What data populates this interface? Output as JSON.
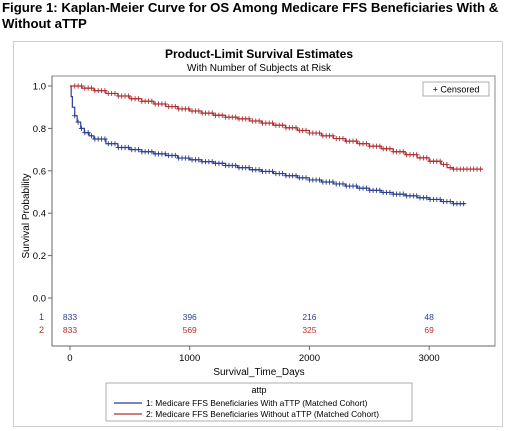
{
  "figure_caption": "Figure 1: Kaplan-Meier Curve for OS Among Medicare FFS Beneficiaries With & Without aTTP",
  "chart_data": {
    "type": "line",
    "title": "Product-Limit Survival Estimates",
    "subtitle": "With Number of Subjects at Risk",
    "xlabel": "Survival_Time_Days",
    "ylabel": "Survival Probability",
    "xlim": [
      -150,
      3550
    ],
    "ylim": [
      0,
      1.0
    ],
    "x_ticks": [
      0,
      1000,
      2000,
      3000
    ],
    "y_ticks": [
      0.0,
      0.2,
      0.4,
      0.6,
      0.8,
      1.0
    ],
    "y_tick_labels": [
      "0.0",
      "0.2",
      "0.4",
      "0.6",
      "0.8",
      "1.0"
    ],
    "censored_legend": "+ Censored",
    "legend_title": "attp",
    "series": [
      {
        "id": "1",
        "name": "1: Medicare FFS Beneficiaries With aTTP (Matched Cohort)",
        "color": "#2a3f8f",
        "points": [
          [
            0,
            1.0
          ],
          [
            10,
            0.95
          ],
          [
            20,
            0.9
          ],
          [
            40,
            0.86
          ],
          [
            60,
            0.83
          ],
          [
            90,
            0.8
          ],
          [
            120,
            0.78
          ],
          [
            160,
            0.765
          ],
          [
            200,
            0.75
          ],
          [
            300,
            0.728
          ],
          [
            400,
            0.71
          ],
          [
            500,
            0.7
          ],
          [
            600,
            0.69
          ],
          [
            700,
            0.68
          ],
          [
            800,
            0.672
          ],
          [
            900,
            0.66
          ],
          [
            1000,
            0.652
          ],
          [
            1100,
            0.643
          ],
          [
            1200,
            0.635
          ],
          [
            1300,
            0.625
          ],
          [
            1400,
            0.615
          ],
          [
            1500,
            0.605
          ],
          [
            1600,
            0.597
          ],
          [
            1700,
            0.587
          ],
          [
            1800,
            0.577
          ],
          [
            1900,
            0.567
          ],
          [
            2000,
            0.557
          ],
          [
            2100,
            0.547
          ],
          [
            2200,
            0.538
          ],
          [
            2300,
            0.528
          ],
          [
            2400,
            0.518
          ],
          [
            2500,
            0.508
          ],
          [
            2600,
            0.498
          ],
          [
            2700,
            0.49
          ],
          [
            2800,
            0.482
          ],
          [
            2900,
            0.473
          ],
          [
            3000,
            0.465
          ],
          [
            3100,
            0.455
          ],
          [
            3200,
            0.445
          ],
          [
            3300,
            0.443
          ]
        ]
      },
      {
        "id": "2",
        "name": "2: Medicare FFS Beneficiaries Without aTTP (Matched Cohort)",
        "color": "#b03030",
        "points": [
          [
            0,
            1.0
          ],
          [
            100,
            0.99
          ],
          [
            200,
            0.978
          ],
          [
            300,
            0.965
          ],
          [
            400,
            0.953
          ],
          [
            500,
            0.94
          ],
          [
            600,
            0.928
          ],
          [
            700,
            0.915
          ],
          [
            800,
            0.903
          ],
          [
            900,
            0.892
          ],
          [
            1000,
            0.882
          ],
          [
            1100,
            0.872
          ],
          [
            1200,
            0.862
          ],
          [
            1300,
            0.853
          ],
          [
            1400,
            0.845
          ],
          [
            1500,
            0.835
          ],
          [
            1600,
            0.825
          ],
          [
            1700,
            0.815
          ],
          [
            1800,
            0.803
          ],
          [
            1900,
            0.79
          ],
          [
            2000,
            0.778
          ],
          [
            2100,
            0.765
          ],
          [
            2200,
            0.752
          ],
          [
            2300,
            0.74
          ],
          [
            2400,
            0.728
          ],
          [
            2500,
            0.716
          ],
          [
            2600,
            0.704
          ],
          [
            2700,
            0.69
          ],
          [
            2800,
            0.676
          ],
          [
            2900,
            0.661
          ],
          [
            3000,
            0.645
          ],
          [
            3100,
            0.63
          ],
          [
            3150,
            0.615
          ],
          [
            3200,
            0.608
          ],
          [
            3300,
            0.608
          ],
          [
            3450,
            0.608
          ]
        ]
      }
    ],
    "at_risk": {
      "x": [
        0,
        1000,
        2000,
        3000
      ],
      "rows": [
        {
          "label": "1",
          "color": "#2a3f8f",
          "values": [
            "833",
            "396",
            "216",
            "48"
          ]
        },
        {
          "label": "2",
          "color": "#b03030",
          "values": [
            "833",
            "569",
            "325",
            "69"
          ]
        }
      ]
    }
  }
}
